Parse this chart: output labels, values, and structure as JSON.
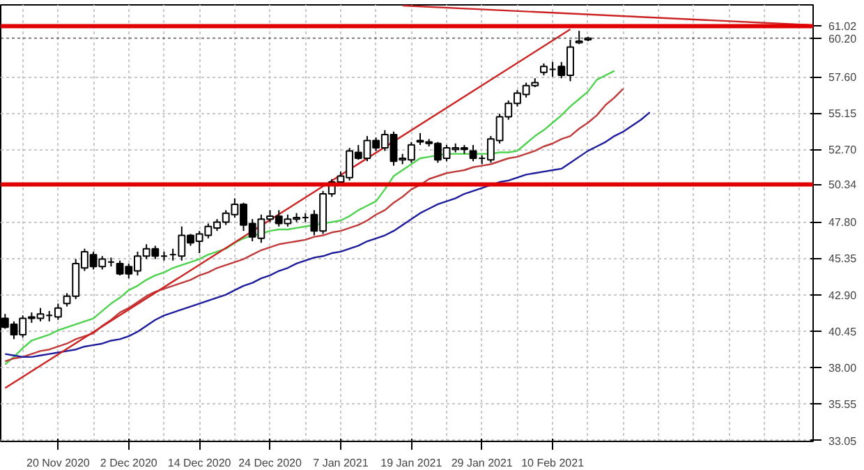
{
  "chart_data": {
    "type": "candlestick",
    "categories": [
      null,
      null,
      null,
      null,
      null,
      null,
      "20 Nov 2020",
      null,
      null,
      null,
      null,
      null,
      null,
      null,
      "2 Dec 2020",
      null,
      null,
      null,
      null,
      null,
      null,
      null,
      "14 Dec 2020",
      null,
      null,
      null,
      null,
      null,
      null,
      null,
      "24 Dec 2020",
      null,
      null,
      null,
      null,
      null,
      null,
      null,
      "7 Jan 2021",
      null,
      null,
      null,
      null,
      null,
      null,
      null,
      "19 Jan 2021",
      null,
      null,
      null,
      null,
      null,
      null,
      null,
      "29 Jan 2021",
      null,
      null,
      null,
      null,
      null,
      null,
      null,
      "10 Feb 2021",
      null,
      null,
      null,
      null,
      null,
      null,
      null,
      null,
      null,
      null,
      null,
      null,
      null,
      null,
      null,
      null,
      null,
      null,
      null,
      null,
      null,
      null,
      null,
      null,
      null,
      null,
      null,
      null,
      null
    ],
    "ohlc": [
      [
        41.3,
        41.6,
        40.6,
        40.7
      ],
      [
        40.9,
        41.1,
        39.9,
        40.2
      ],
      [
        40.2,
        41.5,
        40.0,
        41.3
      ],
      [
        41.3,
        41.7,
        41.0,
        41.4
      ],
      [
        41.3,
        42.0,
        41.1,
        41.6
      ],
      [
        41.5,
        41.8,
        41.1,
        41.5
      ],
      [
        41.4,
        42.3,
        41.2,
        42.0
      ],
      [
        42.3,
        43.0,
        42.1,
        42.8
      ],
      [
        42.8,
        45.3,
        42.6,
        45.0
      ],
      [
        44.7,
        46.0,
        44.5,
        45.8
      ],
      [
        45.6,
        45.8,
        44.6,
        44.8
      ],
      [
        44.8,
        45.5,
        44.6,
        45.3
      ],
      [
        45.1,
        45.4,
        44.8,
        45.1
      ],
      [
        45.0,
        45.2,
        44.2,
        44.3
      ],
      [
        44.8,
        45.0,
        44.0,
        44.3
      ],
      [
        44.5,
        45.8,
        44.2,
        45.5
      ],
      [
        45.5,
        46.3,
        45.3,
        46.0
      ],
      [
        46.0,
        46.2,
        45.3,
        45.5
      ],
      [
        45.5,
        45.8,
        45.2,
        45.5
      ],
      [
        45.6,
        46.0,
        45.2,
        45.6
      ],
      [
        45.5,
        47.5,
        45.2,
        46.9
      ],
      [
        46.9,
        47.0,
        46.2,
        46.4
      ],
      [
        46.5,
        47.2,
        45.7,
        47.0
      ],
      [
        46.9,
        47.7,
        46.7,
        47.5
      ],
      [
        47.4,
        48.0,
        47.2,
        47.8
      ],
      [
        47.8,
        48.6,
        47.6,
        48.4
      ],
      [
        48.3,
        49.4,
        48.1,
        49.0
      ],
      [
        49.0,
        49.1,
        47.2,
        47.6
      ],
      [
        47.7,
        48.0,
        46.5,
        46.8
      ],
      [
        46.7,
        48.3,
        46.4,
        48.0
      ],
      [
        48.0,
        48.6,
        47.8,
        48.2
      ],
      [
        48.2,
        48.6,
        47.5,
        47.7
      ],
      [
        47.7,
        48.3,
        47.5,
        48.0
      ],
      [
        48.0,
        48.4,
        47.8,
        48.1
      ],
      [
        48.1,
        48.4,
        47.8,
        48.1
      ],
      [
        48.3,
        48.6,
        46.9,
        47.2
      ],
      [
        47.2,
        49.9,
        47.0,
        49.7
      ],
      [
        49.7,
        50.7,
        49.5,
        50.5
      ],
      [
        50.5,
        51.2,
        50.3,
        50.9
      ],
      [
        50.8,
        52.8,
        50.6,
        52.6
      ],
      [
        52.5,
        53.0,
        52.0,
        52.1
      ],
      [
        52.1,
        53.6,
        51.9,
        53.3
      ],
      [
        53.3,
        53.5,
        52.6,
        52.8
      ],
      [
        52.8,
        54.0,
        52.6,
        53.7
      ],
      [
        53.7,
        53.9,
        51.6,
        51.9
      ],
      [
        52.0,
        52.4,
        51.7,
        52.1
      ],
      [
        52.0,
        53.2,
        51.8,
        53.0
      ],
      [
        53.2,
        53.8,
        53.0,
        53.3
      ],
      [
        53.2,
        53.4,
        52.9,
        53.1
      ],
      [
        53.1,
        53.2,
        51.8,
        52.0
      ],
      [
        52.1,
        53.0,
        51.9,
        52.8
      ],
      [
        52.7,
        53.1,
        52.5,
        52.8
      ],
      [
        52.8,
        53.0,
        52.4,
        52.7
      ],
      [
        52.6,
        53.0,
        51.9,
        52.1
      ],
      [
        52.1,
        52.3,
        51.7,
        52.1
      ],
      [
        52.0,
        53.6,
        51.8,
        53.4
      ],
      [
        53.3,
        55.1,
        53.1,
        54.9
      ],
      [
        54.9,
        56.0,
        54.7,
        55.8
      ],
      [
        55.8,
        56.7,
        55.6,
        56.5
      ],
      [
        56.4,
        57.2,
        56.2,
        57.0
      ],
      [
        57.0,
        57.5,
        56.9,
        57.2
      ],
      [
        57.9,
        58.5,
        57.7,
        58.3
      ],
      [
        58.1,
        58.6,
        57.6,
        58.1
      ],
      [
        58.3,
        58.6,
        57.5,
        57.7
      ],
      [
        57.7,
        60.1,
        57.3,
        59.6
      ],
      [
        59.9,
        60.7,
        59.8,
        60.0
      ],
      [
        60.1,
        60.3,
        60.0,
        60.2
      ],
      null,
      null,
      null,
      null,
      null,
      null,
      null,
      null,
      null,
      null,
      null,
      null,
      null,
      null,
      null,
      null,
      null,
      null,
      null,
      null,
      null,
      null,
      null,
      null,
      null
    ],
    "series": [
      {
        "type": "line",
        "color": "#4cd24c",
        "values": [
          38.2,
          38.7,
          39.3,
          39.8,
          40.0,
          40.2,
          40.5,
          40.7,
          40.9,
          41.1,
          41.3,
          41.8,
          42.3,
          42.7,
          43.2,
          43.5,
          43.9,
          44.2,
          44.4,
          44.7,
          44.9,
          45.1,
          45.3,
          45.6,
          45.8,
          46.0,
          46.4,
          46.7,
          46.9,
          47.0,
          47.2,
          47.3,
          47.3,
          47.4,
          47.5,
          47.6,
          47.7,
          47.8,
          47.9,
          48.2,
          48.6,
          48.9,
          49.2,
          50.0,
          50.9,
          51.3,
          51.7,
          52.1,
          52.2,
          52.3,
          52.4,
          52.4,
          52.4,
          52.4,
          52.4,
          52.4,
          52.5,
          52.5,
          52.6,
          53.1,
          53.6,
          54.0,
          54.5,
          55.0,
          55.6,
          56.1,
          56.6,
          57.4,
          57.7,
          58.0,
          null,
          null,
          null,
          null,
          null,
          null,
          null,
          null,
          null,
          null,
          null,
          null,
          null,
          null,
          null,
          null,
          null,
          null,
          null,
          null,
          null,
          null
        ]
      },
      {
        "type": "line",
        "color": "#c03a3a",
        "values": [
          38.4,
          38.6,
          38.7,
          38.9,
          39.1,
          39.2,
          39.4,
          39.6,
          39.9,
          40.1,
          40.3,
          40.8,
          41.2,
          41.7,
          42.0,
          42.4,
          42.8,
          43.1,
          43.3,
          43.5,
          43.7,
          43.9,
          44.2,
          44.4,
          44.7,
          44.9,
          45.1,
          45.3,
          45.6,
          45.9,
          46.1,
          46.3,
          46.4,
          46.5,
          46.6,
          46.8,
          46.9,
          47.1,
          47.2,
          47.4,
          47.6,
          47.9,
          48.3,
          48.6,
          49.1,
          49.5,
          50.0,
          50.3,
          50.7,
          50.9,
          51.1,
          51.2,
          51.3,
          51.5,
          51.6,
          51.7,
          51.9,
          52.1,
          52.2,
          52.4,
          52.6,
          52.9,
          53.1,
          53.4,
          53.6,
          54.1,
          54.5,
          55.0,
          55.7,
          56.2,
          56.8,
          null,
          null,
          null,
          null,
          null,
          null,
          null,
          null,
          null,
          null,
          null,
          null,
          null,
          null,
          null,
          null,
          null,
          null,
          null,
          null,
          null
        ]
      },
      {
        "type": "line",
        "color": "#1c1c9c",
        "values": [
          38.9,
          38.8,
          38.7,
          38.7,
          38.8,
          38.9,
          39.0,
          39.1,
          39.2,
          39.4,
          39.5,
          39.6,
          39.8,
          39.9,
          40.1,
          40.4,
          40.8,
          41.2,
          41.5,
          41.7,
          41.9,
          42.1,
          42.3,
          42.5,
          42.7,
          42.9,
          43.2,
          43.5,
          43.7,
          44.0,
          44.2,
          44.5,
          44.7,
          45.0,
          45.2,
          45.4,
          45.5,
          45.7,
          45.8,
          46.0,
          46.2,
          46.5,
          46.7,
          46.9,
          47.2,
          47.6,
          48.0,
          48.4,
          48.7,
          49.0,
          49.2,
          49.4,
          49.7,
          49.9,
          50.1,
          50.3,
          50.5,
          50.6,
          50.8,
          51.0,
          51.1,
          51.2,
          51.3,
          51.4,
          51.8,
          52.2,
          52.6,
          52.9,
          53.2,
          53.6,
          53.9,
          54.3,
          54.7,
          55.2,
          null,
          null,
          null,
          null,
          null,
          null,
          null,
          null,
          null,
          null,
          null,
          null,
          null,
          null,
          null,
          null,
          null,
          null
        ]
      },
      {
        "type": "line",
        "color": "#cc2222",
        "values": [
          36.6,
          null,
          null,
          null,
          null,
          null,
          null,
          null,
          null,
          null,
          null,
          null,
          null,
          null,
          null,
          null,
          null,
          null,
          null,
          null,
          null,
          null,
          null,
          null,
          null,
          null,
          null,
          null,
          null,
          null,
          null,
          null,
          null,
          null,
          null,
          null,
          null,
          null,
          null,
          null,
          null,
          null,
          null,
          null,
          null,
          null,
          null,
          null,
          null,
          null,
          null,
          null,
          null,
          null,
          null,
          null,
          null,
          null,
          null,
          null,
          null,
          null,
          null,
          null,
          60.8,
          null,
          null,
          null,
          null,
          null,
          null,
          null,
          null,
          null,
          null,
          null,
          null,
          null,
          null,
          null,
          null,
          null,
          null,
          null,
          null,
          null,
          null,
          null,
          null,
          null,
          null,
          null
        ]
      },
      {
        "type": "line",
        "color": "#cc2222",
        "values": [
          null,
          null,
          null,
          null,
          null,
          null,
          null,
          null,
          null,
          null,
          null,
          null,
          null,
          null,
          null,
          null,
          null,
          null,
          null,
          null,
          null,
          null,
          null,
          null,
          null,
          null,
          null,
          null,
          null,
          null,
          null,
          null,
          null,
          null,
          null,
          null,
          null,
          null,
          null,
          null,
          null,
          null,
          null,
          null,
          null,
          62.4,
          null,
          null,
          null,
          null,
          null,
          null,
          null,
          null,
          null,
          null,
          null,
          null,
          null,
          null,
          null,
          null,
          null,
          null,
          null,
          null,
          null,
          null,
          null,
          null,
          null,
          null,
          null,
          null,
          null,
          null,
          null,
          null,
          null,
          null,
          null,
          null,
          null,
          null,
          null,
          null,
          null,
          null,
          null,
          null,
          null,
          61.1
        ]
      }
    ],
    "ylim": [
      33.0,
      62.45
    ],
    "yticks": [
      33.05,
      35.55,
      {
        "value": 38,
        "label": "38.00"
      },
      {
        "value": 40.45,
        "label": "40.45"
      },
      {
        "value": 42.9,
        "label": "42.90"
      },
      45.35,
      {
        "value": 47.8,
        "label": "47.80"
      },
      {
        "value": 52.7,
        "label": "52.70"
      },
      55.15,
      {
        "value": 57.6,
        "label": "57.60"
      }
    ],
    "ref_lines": [
      {
        "axis": "y",
        "value": 61.02,
        "label": "61.02",
        "color": "#e00000",
        "line_style": "solid"
      },
      {
        "axis": "y",
        "value": 60.2,
        "label": "60.20",
        "color": "#000000",
        "line_style": "dotted"
      },
      {
        "axis": "y",
        "value": 50.34,
        "label": "50.34",
        "color": "#e00000",
        "line_style": "solid"
      }
    ],
    "grid": true,
    "line_style": "solid"
  }
}
